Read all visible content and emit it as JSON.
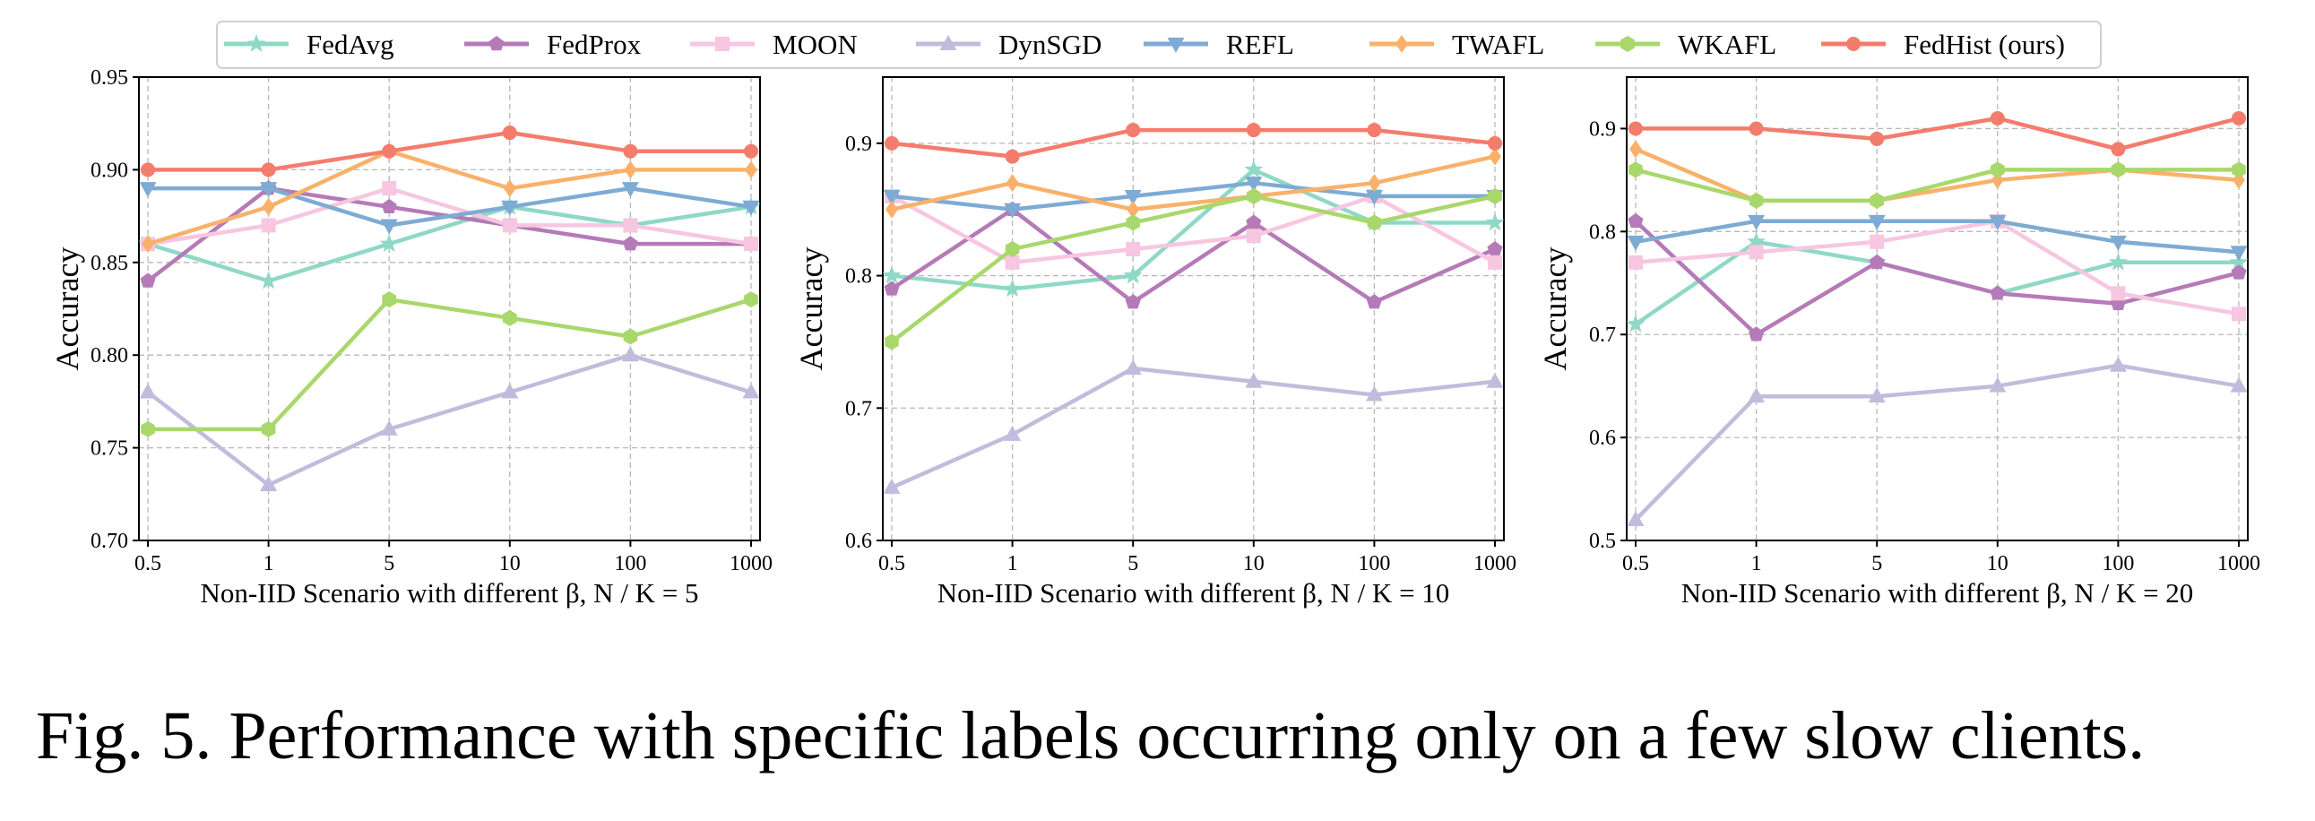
{
  "legend": {
    "items": [
      {
        "label": "FedAvg",
        "color": "#8fd8c6",
        "marker": "star"
      },
      {
        "label": "FedProx",
        "color": "#b57ab8",
        "marker": "pentagon"
      },
      {
        "label": "MOON",
        "color": "#f7c6e0",
        "marker": "square"
      },
      {
        "label": "DynSGD",
        "color": "#c2bbdc",
        "marker": "triangle-up"
      },
      {
        "label": "REFL",
        "color": "#7eabd3",
        "marker": "triangle-down"
      },
      {
        "label": "TWAFL",
        "color": "#f9b16a",
        "marker": "diamond"
      },
      {
        "label": "WKAFL",
        "color": "#a8d86b",
        "marker": "hexagon"
      },
      {
        "label": "FedHist (ours)",
        "color": "#f47c6d",
        "marker": "circle"
      }
    ]
  },
  "chart_data": [
    {
      "type": "line",
      "xlabel": "Non-IID Scenario with different β, N / K = 5",
      "ylabel": "Accuracy",
      "categories": [
        "0.5",
        "1",
        "5",
        "10",
        "100",
        "1000"
      ],
      "ylim": [
        0.7,
        0.95
      ],
      "yticks": [
        "0.70",
        "0.75",
        "0.80",
        "0.85",
        "0.90",
        "0.95"
      ],
      "grid": true,
      "series": [
        {
          "name": "FedAvg",
          "values": [
            0.86,
            0.84,
            0.86,
            0.88,
            0.87,
            0.88
          ]
        },
        {
          "name": "FedProx",
          "values": [
            0.84,
            0.89,
            0.88,
            0.87,
            0.86,
            0.86
          ]
        },
        {
          "name": "MOON",
          "values": [
            0.86,
            0.87,
            0.89,
            0.87,
            0.87,
            0.86
          ]
        },
        {
          "name": "DynSGD",
          "values": [
            0.78,
            0.73,
            0.76,
            0.78,
            0.8,
            0.78
          ]
        },
        {
          "name": "REFL",
          "values": [
            0.89,
            0.89,
            0.87,
            0.88,
            0.89,
            0.88
          ]
        },
        {
          "name": "TWAFL",
          "values": [
            0.86,
            0.88,
            0.91,
            0.89,
            0.9,
            0.9
          ]
        },
        {
          "name": "WKAFL",
          "values": [
            0.76,
            0.76,
            0.83,
            0.82,
            0.81,
            0.83
          ]
        },
        {
          "name": "FedHist (ours)",
          "values": [
            0.9,
            0.9,
            0.91,
            0.92,
            0.91,
            0.91
          ]
        }
      ]
    },
    {
      "type": "line",
      "xlabel": "Non-IID Scenario with different β, N / K = 10",
      "ylabel": "Accuracy",
      "categories": [
        "0.5",
        "1",
        "5",
        "10",
        "100",
        "1000"
      ],
      "ylim": [
        0.6,
        0.95
      ],
      "yticks": [
        "0.6",
        "0.7",
        "0.8",
        "0.9"
      ],
      "grid": true,
      "series": [
        {
          "name": "FedAvg",
          "values": [
            0.8,
            0.79,
            0.8,
            0.88,
            0.84,
            0.84
          ]
        },
        {
          "name": "FedProx",
          "values": [
            0.79,
            0.85,
            0.78,
            0.84,
            0.78,
            0.82
          ]
        },
        {
          "name": "MOON",
          "values": [
            0.86,
            0.81,
            0.82,
            0.83,
            0.86,
            0.81
          ]
        },
        {
          "name": "DynSGD",
          "values": [
            0.64,
            0.68,
            0.73,
            0.72,
            0.71,
            0.72
          ]
        },
        {
          "name": "REFL",
          "values": [
            0.86,
            0.85,
            0.86,
            0.87,
            0.86,
            0.86
          ]
        },
        {
          "name": "TWAFL",
          "values": [
            0.85,
            0.87,
            0.85,
            0.86,
            0.87,
            0.89
          ]
        },
        {
          "name": "WKAFL",
          "values": [
            0.75,
            0.82,
            0.84,
            0.86,
            0.84,
            0.86
          ]
        },
        {
          "name": "FedHist (ours)",
          "values": [
            0.9,
            0.89,
            0.91,
            0.91,
            0.91,
            0.9
          ]
        }
      ]
    },
    {
      "type": "line",
      "xlabel": "Non-IID Scenario with different β, N / K = 20",
      "ylabel": "Accuracy",
      "categories": [
        "0.5",
        "1",
        "5",
        "10",
        "100",
        "1000"
      ],
      "ylim": [
        0.5,
        0.95
      ],
      "yticks": [
        "0.5",
        "0.6",
        "0.7",
        "0.8",
        "0.9"
      ],
      "grid": true,
      "series": [
        {
          "name": "FedAvg",
          "values": [
            0.71,
            0.79,
            0.77,
            0.74,
            0.77,
            0.77
          ]
        },
        {
          "name": "FedProx",
          "values": [
            0.81,
            0.7,
            0.77,
            0.74,
            0.73,
            0.76
          ]
        },
        {
          "name": "MOON",
          "values": [
            0.77,
            0.78,
            0.79,
            0.81,
            0.74,
            0.72
          ]
        },
        {
          "name": "DynSGD",
          "values": [
            0.52,
            0.64,
            0.64,
            0.65,
            0.67,
            0.65
          ]
        },
        {
          "name": "REFL",
          "values": [
            0.79,
            0.81,
            0.81,
            0.81,
            0.79,
            0.78
          ]
        },
        {
          "name": "TWAFL",
          "values": [
            0.88,
            0.83,
            0.83,
            0.85,
            0.86,
            0.85
          ]
        },
        {
          "name": "WKAFL",
          "values": [
            0.86,
            0.83,
            0.83,
            0.86,
            0.86,
            0.86
          ]
        },
        {
          "name": "FedHist (ours)",
          "values": [
            0.9,
            0.9,
            0.89,
            0.91,
            0.88,
            0.91
          ]
        }
      ]
    }
  ],
  "caption": "Fig. 5.  Performance with specific labels occurring only on a few slow clients."
}
